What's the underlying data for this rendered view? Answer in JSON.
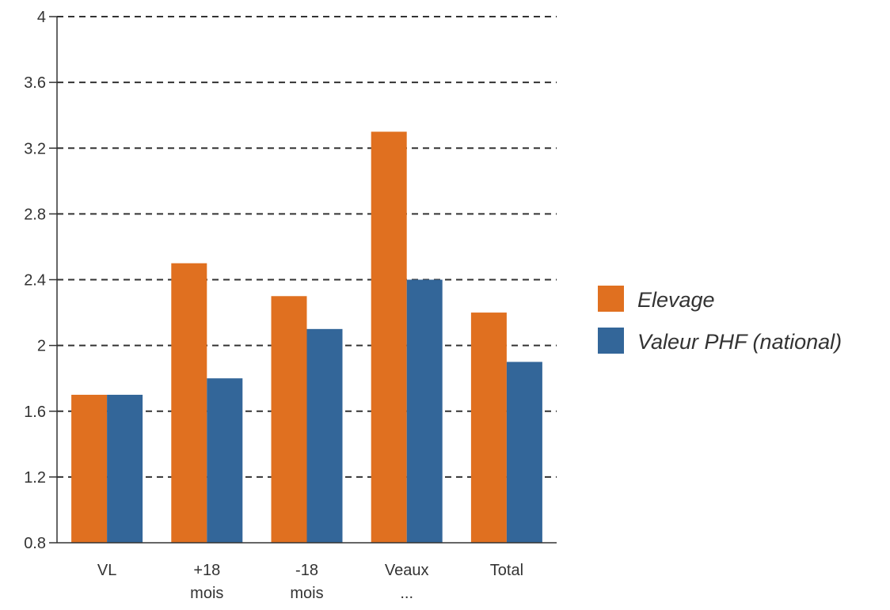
{
  "chart_data": {
    "type": "bar",
    "title": "",
    "xlabel": "",
    "ylabel": "",
    "categories": [
      [
        "VL"
      ],
      [
        "+18",
        "mois"
      ],
      [
        "-18",
        "mois"
      ],
      [
        "Veaux",
        "..."
      ],
      [
        "Total"
      ]
    ],
    "series": [
      {
        "name": "Elevage",
        "color": "#e07020",
        "values": [
          1.7,
          2.5,
          2.3,
          3.3,
          2.2
        ]
      },
      {
        "name": "Valeur PHF (national)",
        "color": "#336699",
        "values": [
          1.7,
          1.8,
          2.1,
          2.4,
          1.9
        ]
      }
    ],
    "ylim": [
      0.8,
      4
    ],
    "yticks": [
      "0.8",
      "1.2",
      "1.6",
      "2",
      "2.4",
      "2.8",
      "3.2",
      "3.6",
      "4"
    ],
    "grid": true,
    "grid_style": "dashed",
    "legend_position": "right"
  }
}
